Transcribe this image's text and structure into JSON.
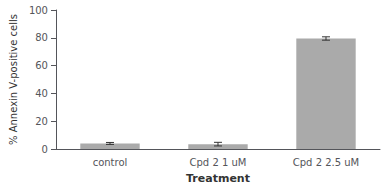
{
  "chart_data": {
    "type": "bar",
    "categories": [
      "control",
      "Cpd 2 1 uM",
      "Cpd 2 2.5 uM"
    ],
    "values": [
      4.0,
      3.5,
      79.5
    ],
    "errors": [
      0.7,
      1.3,
      1.2
    ],
    "color": "#aaaaaa",
    "xlabel": "Treatment",
    "ylabel": "% Annexin V-positive cells",
    "ylim": [
      0,
      100
    ],
    "yticks": [
      0,
      20,
      40,
      60,
      80,
      100
    ],
    "grid": false
  }
}
